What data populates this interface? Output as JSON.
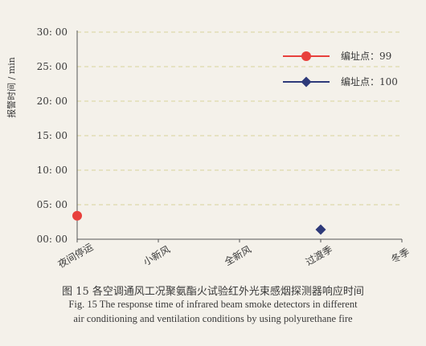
{
  "chart_data": {
    "type": "scatter",
    "ylabel": "报警时间 / min",
    "xlabel": "",
    "categories": [
      "夜间停运",
      "小新风",
      "全新风",
      "过渡季",
      "冬季"
    ],
    "yticks": [
      "00: 00",
      "05: 00",
      "10: 00",
      "15: 00",
      "20: 00",
      "25: 00",
      "30: 00"
    ],
    "ylim": [
      0,
      30
    ],
    "grid": true,
    "legend_position": "top-right",
    "series": [
      {
        "name": "编址点：99",
        "color": "#e8403c",
        "marker": "circle",
        "points": [
          {
            "category": "夜间停运",
            "y": 3.4
          }
        ]
      },
      {
        "name": "编址点：100",
        "color": "#2e3a7a",
        "marker": "diamond",
        "points": [
          {
            "category": "过渡季",
            "y": 1.4
          }
        ]
      }
    ]
  },
  "caption": {
    "cn": "图 15   各空调通风工况聚氨酯火试验红外光束感烟探测器响应时间",
    "en_line1": "Fig. 15   The response time of infrared beam smoke detectors in different",
    "en_line2": "air conditioning and ventilation conditions by using polyurethane fire"
  }
}
